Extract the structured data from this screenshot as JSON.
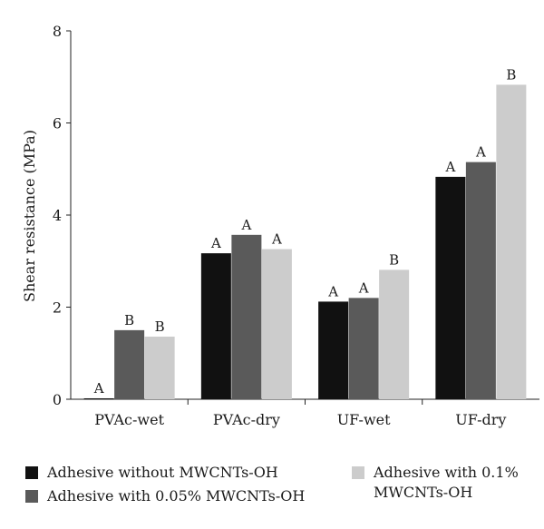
{
  "chart_data": {
    "type": "bar",
    "categories": [
      "PVAc-wet",
      "PVAc-dry",
      "UF-wet",
      "UF-dry"
    ],
    "series": [
      {
        "name": "Adhesive without MWCNTs-OH",
        "color": "#111111",
        "values": [
          0.02,
          3.17,
          2.12,
          4.83
        ],
        "labels": [
          "A",
          "A",
          "A",
          "A"
        ]
      },
      {
        "name": "Adhesive with 0.05% MWCNTs-OH",
        "color": "#5a5a5a",
        "values": [
          1.5,
          3.57,
          2.2,
          5.15
        ],
        "labels": [
          "B",
          "A",
          "A",
          "A"
        ]
      },
      {
        "name": "Adhesive with 0.1% MWCNTs-OH",
        "color": "#cccccc",
        "values": [
          1.36,
          3.26,
          2.81,
          6.83
        ],
        "labels": [
          "B",
          "A",
          "B",
          "B"
        ]
      }
    ],
    "title": "",
    "xlabel": "",
    "ylabel": "Shear resistance (MPa)",
    "ylim": [
      0,
      8
    ],
    "yticks": [
      0,
      2,
      4,
      6,
      8
    ],
    "grid": false,
    "legend_position": "bottom"
  },
  "legend": {
    "item1": "Adhesive without MWCNTs-OH",
    "item2": "Adhesive with 0.05% MWCNTs-OH",
    "item3_line1": "Adhesive with 0.1%",
    "item3_line2": "MWCNTs-OH"
  }
}
